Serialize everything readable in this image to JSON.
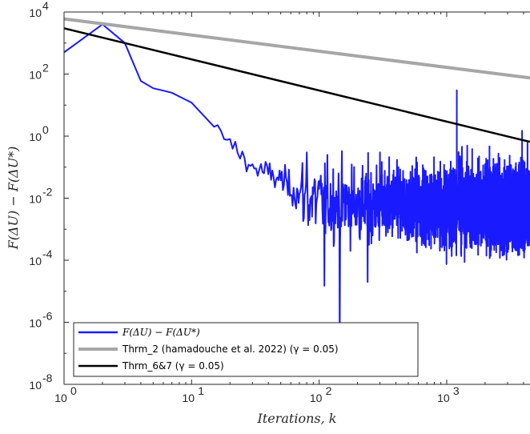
{
  "chart_data": {
    "type": "line",
    "title": "",
    "xlabel": "Iterations, k",
    "ylabel": "F(ΔU) − F(ΔU*)",
    "xscale": "log",
    "yscale": "log",
    "xlim": [
      1,
      4500
    ],
    "ylim": [
      1e-08,
      10000
    ],
    "x_ticks": [
      {
        "value": 1,
        "base": "10",
        "exp": "0"
      },
      {
        "value": 10,
        "base": "10",
        "exp": "1"
      },
      {
        "value": 100,
        "base": "10",
        "exp": "2"
      },
      {
        "value": 1000,
        "base": "10",
        "exp": "3"
      }
    ],
    "y_ticks": [
      {
        "value": 1e-08,
        "base": "10",
        "exp": "-8"
      },
      {
        "value": 1e-06,
        "base": "10",
        "exp": "-6"
      },
      {
        "value": 0.0001,
        "base": "10",
        "exp": "-4"
      },
      {
        "value": 0.01,
        "base": "10",
        "exp": "-2"
      },
      {
        "value": 1,
        "base": "10",
        "exp": "0"
      },
      {
        "value": 100,
        "base": "10",
        "exp": "2"
      },
      {
        "value": 10000,
        "base": "10",
        "exp": "4"
      }
    ],
    "grid": false,
    "legend_position": "bottom-left",
    "series": [
      {
        "name": "F(ΔU) − F(ΔU*)",
        "color": "#1a1aff",
        "kind": "noisy",
        "keypoints": [
          [
            1,
            500
          ],
          [
            2,
            4000
          ],
          [
            3,
            1000
          ],
          [
            4,
            60
          ],
          [
            5,
            35
          ],
          [
            7,
            25
          ],
          [
            10,
            12
          ],
          [
            15,
            2
          ],
          [
            20,
            0.6
          ],
          [
            30,
            0.1
          ],
          [
            50,
            0.04
          ],
          [
            70,
            0.012
          ],
          [
            100,
            0.008
          ],
          [
            300,
            0.006
          ],
          [
            1000,
            0.006
          ],
          [
            4500,
            0.005
          ]
        ],
        "spikes": [
          [
            80,
            0.3
          ],
          [
            300,
            0.3
          ],
          [
            1200,
            30
          ],
          [
            1450,
            0.5
          ],
          [
            2600,
            0.2
          ],
          [
            3900,
            1.5
          ],
          [
            4300,
            0.6
          ],
          [
            145,
            1e-07
          ],
          [
            110,
            1.5e-05
          ],
          [
            240,
            2e-05
          ]
        ]
      },
      {
        "name": "Thrm_2 (hamadouche et al. 2022) (γ = 0.05)",
        "color": "#a6a6a6",
        "kind": "line",
        "points": [
          [
            1,
            6000
          ],
          [
            4500,
            75
          ]
        ]
      },
      {
        "name": "Thrm_6&7 (γ = 0.05)",
        "color": "#000000",
        "kind": "line",
        "points": [
          [
            1,
            3000
          ],
          [
            4500,
            0.65
          ]
        ]
      }
    ]
  }
}
